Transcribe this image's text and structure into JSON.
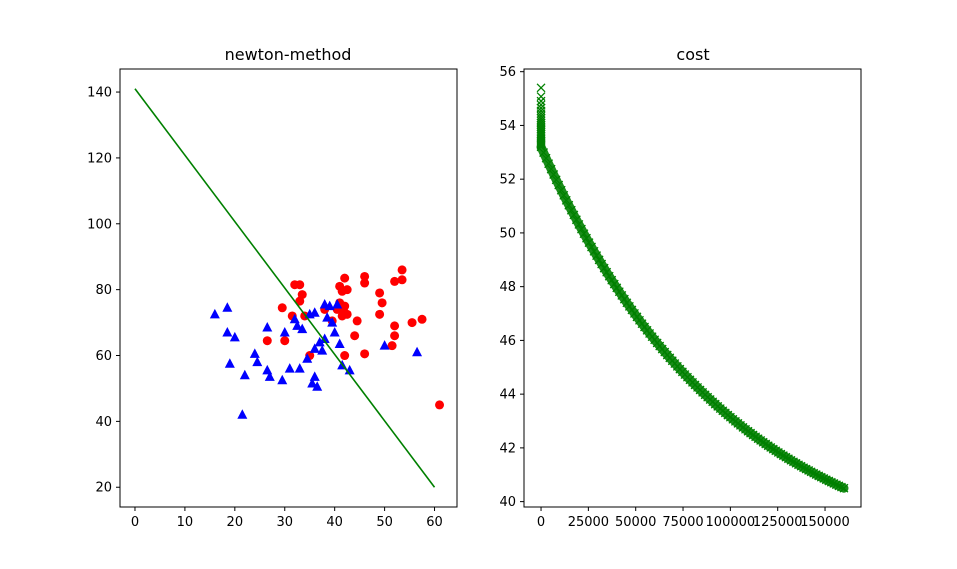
{
  "chart_data": [
    {
      "type": "scatter",
      "title": "newton-method",
      "xlabel": "",
      "ylabel": "",
      "xlim": [
        -3,
        64.5
      ],
      "ylim": [
        14,
        147
      ],
      "xticks": [
        0,
        10,
        20,
        30,
        40,
        50,
        60
      ],
      "yticks": [
        20,
        40,
        60,
        80,
        100,
        120,
        140
      ],
      "grid": false,
      "colors": {
        "class_a": "#ff0000",
        "class_b": "#0000ff",
        "boundary": "#008000"
      },
      "series": [
        {
          "marker": "circle",
          "color": "#ff0000",
          "points": [
            [
              32,
              81.5
            ],
            [
              33,
              81.5
            ],
            [
              33.5,
              78.5
            ],
            [
              33,
              76.5
            ],
            [
              29.5,
              74.5
            ],
            [
              26.5,
              64.5
            ],
            [
              30,
              64.5
            ],
            [
              31.5,
              72
            ],
            [
              34,
              72
            ],
            [
              35,
              60
            ],
            [
              38,
              74
            ],
            [
              39.5,
              70.5
            ],
            [
              40.5,
              74
            ],
            [
              41,
              76
            ],
            [
              41,
              81
            ],
            [
              41.5,
              79.5
            ],
            [
              41.5,
              72
            ],
            [
              42,
              75
            ],
            [
              42,
              83.5
            ],
            [
              42.5,
              80
            ],
            [
              42,
              73
            ],
            [
              42.5,
              72.5
            ],
            [
              42,
              60
            ],
            [
              44,
              66
            ],
            [
              44.5,
              70.5
            ],
            [
              46,
              84
            ],
            [
              46,
              82
            ],
            [
              46,
              60.5
            ],
            [
              49,
              72.5
            ],
            [
              49,
              79
            ],
            [
              49.5,
              76
            ],
            [
              51.5,
              63
            ],
            [
              52,
              82.5
            ],
            [
              52,
              66
            ],
            [
              52,
              69
            ],
            [
              53.5,
              86
            ],
            [
              53.5,
              83
            ],
            [
              55.5,
              70
            ],
            [
              57.5,
              71
            ],
            [
              61,
              45
            ]
          ]
        },
        {
          "marker": "triangle",
          "color": "#0000ff",
          "points": [
            [
              16,
              72.5
            ],
            [
              18.5,
              74.5
            ],
            [
              18.5,
              67
            ],
            [
              19,
              57.5
            ],
            [
              20,
              65.5
            ],
            [
              21.5,
              42
            ],
            [
              22,
              54
            ],
            [
              24,
              60.5
            ],
            [
              24.5,
              58
            ],
            [
              26.5,
              55.5
            ],
            [
              26.5,
              68.5
            ],
            [
              27,
              53.5
            ],
            [
              29.5,
              52.5
            ],
            [
              30,
              67
            ],
            [
              31,
              56
            ],
            [
              32,
              71
            ],
            [
              32.5,
              69
            ],
            [
              33,
              56
            ],
            [
              33.5,
              68
            ],
            [
              34.5,
              59
            ],
            [
              35,
              72.5
            ],
            [
              35.5,
              51.5
            ],
            [
              36,
              62
            ],
            [
              36,
              73
            ],
            [
              36,
              53.5
            ],
            [
              36.5,
              50.5
            ],
            [
              37,
              64
            ],
            [
              37.5,
              61.5
            ],
            [
              38,
              75.5
            ],
            [
              38,
              65
            ],
            [
              38.5,
              71.5
            ],
            [
              39,
              75
            ],
            [
              39.5,
              70
            ],
            [
              40,
              67
            ],
            [
              40.5,
              75.5
            ],
            [
              41,
              63.5
            ],
            [
              41.5,
              57
            ],
            [
              43,
              55.5
            ],
            [
              50,
              63
            ],
            [
              56.5,
              61
            ]
          ]
        },
        {
          "marker": "line",
          "color": "#008000",
          "points": [
            [
              0,
              141
            ],
            [
              60,
              20
            ]
          ]
        }
      ]
    },
    {
      "type": "scatter",
      "title": "cost",
      "xlabel": "",
      "ylabel": "",
      "xlim": [
        -9000,
        169000
      ],
      "ylim": [
        39.8,
        56.1
      ],
      "xticks": [
        0,
        25000,
        50000,
        75000,
        100000,
        125000,
        150000
      ],
      "yticks": [
        40,
        42,
        44,
        46,
        48,
        50,
        52,
        54,
        56
      ],
      "grid": false,
      "colors": {
        "cost": "#008000"
      },
      "series": [
        {
          "marker": "x",
          "color": "#008000",
          "x_range": [
            0,
            160000
          ],
          "y_start": 55.4,
          "y_after_drop": 53.2,
          "y_end": 40.5
        }
      ]
    }
  ]
}
